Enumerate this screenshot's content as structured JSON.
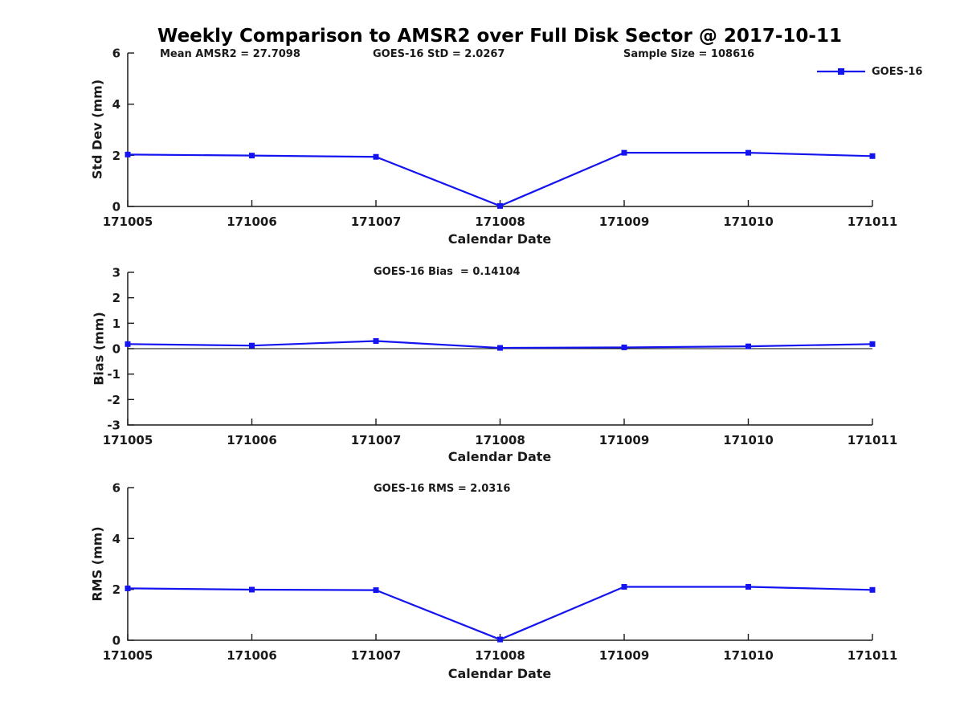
{
  "title": "Weekly Comparison to AMSR2 over Full Disk Sector @ 2017-10-11",
  "legend": {
    "label": "GOES-16"
  },
  "colors": {
    "line": "#1414F0",
    "marker": "#1414F0",
    "axis": "#1a1a1a",
    "text": "#1a1a1a",
    "zero_line": "#000000",
    "background": "#ffffff"
  },
  "chart_data": [
    {
      "type": "line",
      "panel": "std_dev",
      "x": [
        171005,
        171006,
        171007,
        171008,
        171009,
        171010,
        171011
      ],
      "series": [
        {
          "name": "GOES-16",
          "values": [
            2.03,
            1.99,
            1.94,
            0.02,
            2.1,
            2.1,
            1.97
          ]
        }
      ],
      "xlabel": "Calendar Date",
      "ylabel": "Std Dev (mm)",
      "ylim": [
        0,
        6
      ],
      "yticks": [
        0,
        2,
        4,
        6
      ],
      "grid": false,
      "zero_line": false,
      "legend_position": "top-right",
      "annotations": [
        {
          "text": "Mean AMSR2 = 27.7098"
        },
        {
          "text": "GOES-16 StD = 2.0267"
        },
        {
          "text": "Sample Size = 108616"
        }
      ],
      "stats": {
        "mean_amsr2": 27.7098,
        "goes16_std": 2.0267,
        "sample_size": 108616
      }
    },
    {
      "type": "line",
      "panel": "bias",
      "x": [
        171005,
        171006,
        171007,
        171008,
        171009,
        171010,
        171011
      ],
      "series": [
        {
          "name": "GOES-16",
          "values": [
            0.18,
            0.12,
            0.3,
            0.03,
            0.05,
            0.09,
            0.18
          ]
        }
      ],
      "xlabel": "Calendar Date",
      "ylabel": "Bias (mm)",
      "ylim": [
        -3,
        3
      ],
      "yticks": [
        -3,
        -2,
        -1,
        0,
        1,
        2,
        3
      ],
      "grid": false,
      "zero_line": true,
      "annotations": [
        {
          "text": "GOES-16 Bias  = 0.14104"
        }
      ],
      "stats": {
        "goes16_bias": 0.14104
      }
    },
    {
      "type": "line",
      "panel": "rms",
      "x": [
        171005,
        171006,
        171007,
        171008,
        171009,
        171010,
        171011
      ],
      "series": [
        {
          "name": "GOES-16",
          "values": [
            2.04,
            1.99,
            1.97,
            0.03,
            2.1,
            2.1,
            1.98
          ]
        }
      ],
      "xlabel": "Calendar Date",
      "ylabel": "RMS (mm)",
      "ylim": [
        0,
        6
      ],
      "yticks": [
        0,
        2,
        4,
        6
      ],
      "grid": false,
      "zero_line": false,
      "annotations": [
        {
          "text": "GOES-16 RMS = 2.0316"
        }
      ],
      "stats": {
        "goes16_rms": 2.0316
      }
    }
  ]
}
